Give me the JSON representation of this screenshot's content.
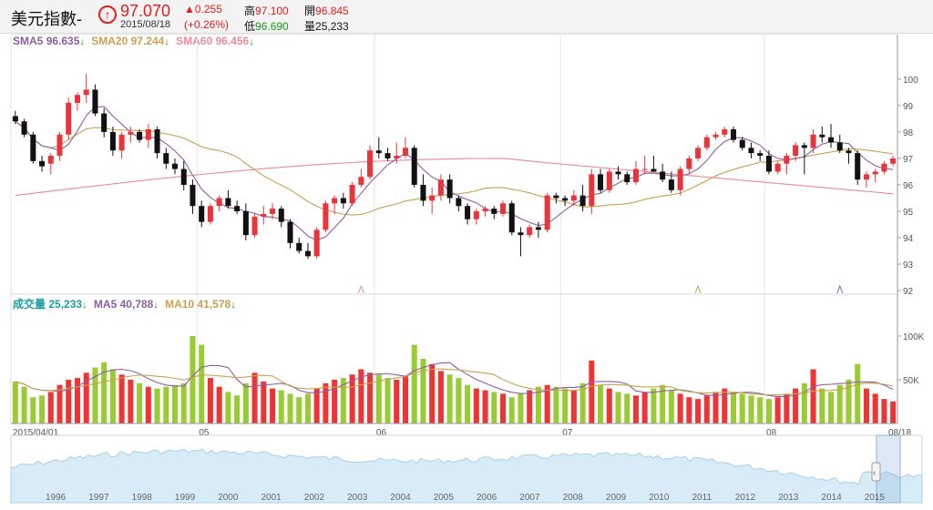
{
  "header": {
    "title": "美元指數-",
    "price": "97.070",
    "date": "2015/08/18",
    "change": "▲0.255",
    "change_pct": "(+0.26%)",
    "high_label": "高",
    "high": "97.100",
    "open_label": "開",
    "open": "96.845",
    "low_label": "低",
    "low": "96.690",
    "volume_label": "量",
    "volume": "25,233"
  },
  "price_legend": [
    {
      "label": "SMA5",
      "value": "96.635",
      "color": "#8e5ea2"
    },
    {
      "label": "SMA20",
      "value": "97.244",
      "color": "#c8a050"
    },
    {
      "label": "SMA60",
      "value": "96.456",
      "color": "#e98a9a"
    }
  ],
  "volume_legend": [
    {
      "label": "成交量",
      "value": "25,233",
      "color": "#1aa0a0"
    },
    {
      "label": "MA5",
      "value": "40,788",
      "color": "#8e5ea2"
    },
    {
      "label": "MA10",
      "value": "41,578",
      "color": "#c8a050"
    }
  ],
  "arrow_glyph": "↓",
  "chart_data": {
    "type": "candlestick",
    "price_axis": {
      "ticks": [
        92,
        93,
        94,
        95,
        96,
        97,
        98,
        99,
        100
      ],
      "ylim": [
        91.9,
        101.2
      ]
    },
    "volume_axis": {
      "ticks": [
        "50K",
        "100K"
      ],
      "ylim": [
        0,
        125000
      ]
    },
    "x_labels": [
      {
        "label": "2015/04/01",
        "index": 0
      },
      {
        "label": "05",
        "index": 21
      },
      {
        "label": "06",
        "index": 41
      },
      {
        "label": "07",
        "index": 62
      },
      {
        "label": "08",
        "index": 85
      },
      {
        "label": "08/18",
        "index": 97
      }
    ],
    "ohlc": [
      [
        98.6,
        98.8,
        98.3,
        98.4
      ],
      [
        98.4,
        98.5,
        97.8,
        97.9
      ],
      [
        97.9,
        98.0,
        96.8,
        96.9
      ],
      [
        96.9,
        97.1,
        96.5,
        96.7
      ],
      [
        96.8,
        97.2,
        96.4,
        97.1
      ],
      [
        97.1,
        98.0,
        96.9,
        97.9
      ],
      [
        97.9,
        99.3,
        97.7,
        99.1
      ],
      [
        99.1,
        99.5,
        98.8,
        99.4
      ],
      [
        99.4,
        100.2,
        99.1,
        99.6
      ],
      [
        99.6,
        99.8,
        98.6,
        98.7
      ],
      [
        98.7,
        98.9,
        97.8,
        98.0
      ],
      [
        98.0,
        98.2,
        97.1,
        97.3
      ],
      [
        97.3,
        98.0,
        97.0,
        97.9
      ],
      [
        97.9,
        98.2,
        97.6,
        98.0
      ],
      [
        98.0,
        98.1,
        97.6,
        97.7
      ],
      [
        97.7,
        98.3,
        97.4,
        98.1
      ],
      [
        98.1,
        98.2,
        97.0,
        97.2
      ],
      [
        97.2,
        97.4,
        96.6,
        96.8
      ],
      [
        96.8,
        97.0,
        96.4,
        96.6
      ],
      [
        96.6,
        96.9,
        95.8,
        96.0
      ],
      [
        96.0,
        96.2,
        94.9,
        95.2
      ],
      [
        95.2,
        95.4,
        94.4,
        94.6
      ],
      [
        94.6,
        95.3,
        94.5,
        95.2
      ],
      [
        95.2,
        95.6,
        95.0,
        95.5
      ],
      [
        95.5,
        95.8,
        95.1,
        95.2
      ],
      [
        95.2,
        95.4,
        94.9,
        95.0
      ],
      [
        95.0,
        95.3,
        93.9,
        94.1
      ],
      [
        94.1,
        94.9,
        94.0,
        94.8
      ],
      [
        94.8,
        95.2,
        94.5,
        94.9
      ],
      [
        94.9,
        95.3,
        94.7,
        95.1
      ],
      [
        95.1,
        95.2,
        94.4,
        94.6
      ],
      [
        94.6,
        94.7,
        93.6,
        93.8
      ],
      [
        93.8,
        94.0,
        93.4,
        93.5
      ],
      [
        93.5,
        93.8,
        93.2,
        93.3
      ],
      [
        93.3,
        94.4,
        93.2,
        94.3
      ],
      [
        94.3,
        95.4,
        94.2,
        95.3
      ],
      [
        95.3,
        95.6,
        94.9,
        95.5
      ],
      [
        95.5,
        95.7,
        95.1,
        95.3
      ],
      [
        95.3,
        96.1,
        95.2,
        96.0
      ],
      [
        96.0,
        96.6,
        95.9,
        96.3
      ],
      [
        96.3,
        97.5,
        96.2,
        97.3
      ],
      [
        97.3,
        97.8,
        97.0,
        97.2
      ],
      [
        97.2,
        97.4,
        96.9,
        97.0
      ],
      [
        97.0,
        97.6,
        96.8,
        97.1
      ],
      [
        97.1,
        97.8,
        97.0,
        97.4
      ],
      [
        97.4,
        97.5,
        95.9,
        96.0
      ],
      [
        96.0,
        96.4,
        95.2,
        95.4
      ],
      [
        95.4,
        95.9,
        94.9,
        95.6
      ],
      [
        95.6,
        96.4,
        95.4,
        96.2
      ],
      [
        96.2,
        96.4,
        95.3,
        95.5
      ],
      [
        95.5,
        95.6,
        95.0,
        95.2
      ],
      [
        95.2,
        95.3,
        94.5,
        94.7
      ],
      [
        94.7,
        95.1,
        94.5,
        95.0
      ],
      [
        95.0,
        95.2,
        94.8,
        95.1
      ],
      [
        95.1,
        95.2,
        94.7,
        94.9
      ],
      [
        94.9,
        95.4,
        94.8,
        95.3
      ],
      [
        95.3,
        95.4,
        94.1,
        94.2
      ],
      [
        94.2,
        94.4,
        93.3,
        94.1
      ],
      [
        94.1,
        94.5,
        94.0,
        94.4
      ],
      [
        94.4,
        94.6,
        94.0,
        94.3
      ],
      [
        94.3,
        95.7,
        94.2,
        95.6
      ],
      [
        95.6,
        95.7,
        95.3,
        95.5
      ],
      [
        95.5,
        95.6,
        95.2,
        95.4
      ],
      [
        95.4,
        95.8,
        95.2,
        95.6
      ],
      [
        95.6,
        96.0,
        95.0,
        95.2
      ],
      [
        95.2,
        96.6,
        94.9,
        96.4
      ],
      [
        96.4,
        96.6,
        95.7,
        95.8
      ],
      [
        95.8,
        96.6,
        95.7,
        96.5
      ],
      [
        96.5,
        96.7,
        96.2,
        96.4
      ],
      [
        96.4,
        96.5,
        96.0,
        96.1
      ],
      [
        96.1,
        96.9,
        96.0,
        96.6
      ],
      [
        96.6,
        97.1,
        96.4,
        96.6
      ],
      [
        96.6,
        97.1,
        96.5,
        96.5
      ],
      [
        96.5,
        96.8,
        96.1,
        96.2
      ],
      [
        96.2,
        96.5,
        95.7,
        95.8
      ],
      [
        95.8,
        96.7,
        95.6,
        96.6
      ],
      [
        96.6,
        97.1,
        96.4,
        97.0
      ],
      [
        97.0,
        97.5,
        96.9,
        97.4
      ],
      [
        97.4,
        97.9,
        97.3,
        97.8
      ],
      [
        97.8,
        98.0,
        97.7,
        97.9
      ],
      [
        97.9,
        98.2,
        97.8,
        98.1
      ],
      [
        98.1,
        98.2,
        97.6,
        97.7
      ],
      [
        97.7,
        97.8,
        97.3,
        97.4
      ],
      [
        97.4,
        97.6,
        97.0,
        97.2
      ],
      [
        97.2,
        97.3,
        96.9,
        97.1
      ],
      [
        97.1,
        97.3,
        96.4,
        96.5
      ],
      [
        96.5,
        96.9,
        96.4,
        96.8
      ],
      [
        96.8,
        97.2,
        96.4,
        97.1
      ],
      [
        97.1,
        97.6,
        96.9,
        97.5
      ],
      [
        97.5,
        97.6,
        96.4,
        97.4
      ],
      [
        97.4,
        98.1,
        97.2,
        97.9
      ],
      [
        97.9,
        98.2,
        97.6,
        97.8
      ],
      [
        97.8,
        98.3,
        97.4,
        97.6
      ],
      [
        97.6,
        97.9,
        97.2,
        97.3
      ],
      [
        97.3,
        97.4,
        96.8,
        97.2
      ],
      [
        97.2,
        97.3,
        96.0,
        96.2
      ],
      [
        96.2,
        96.5,
        95.9,
        96.4
      ],
      [
        96.4,
        96.6,
        96.1,
        96.5
      ],
      [
        96.5,
        96.9,
        96.4,
        96.8
      ],
      [
        96.8,
        97.1,
        96.7,
        97.0
      ]
    ],
    "volume": [
      48000,
      42000,
      30000,
      32000,
      36000,
      44000,
      50000,
      52000,
      58000,
      64000,
      70000,
      62000,
      56000,
      50000,
      46000,
      42000,
      40000,
      42000,
      44000,
      46000,
      100000,
      90000,
      52000,
      42000,
      36000,
      32000,
      46000,
      58000,
      48000,
      40000,
      38000,
      34000,
      30000,
      34000,
      40000,
      46000,
      50000,
      52000,
      56000,
      62000,
      58000,
      56000,
      52000,
      50000,
      54000,
      90000,
      74000,
      68000,
      60000,
      56000,
      52000,
      44000,
      40000,
      38000,
      36000,
      34000,
      30000,
      34000,
      38000,
      42000,
      44000,
      42000,
      40000,
      38000,
      46000,
      72000,
      44000,
      40000,
      36000,
      34000,
      32000,
      36000,
      40000,
      44000,
      38000,
      34000,
      30000,
      28000,
      32000,
      36000,
      40000,
      36000,
      34000,
      32000,
      30000,
      28000,
      30000,
      34000,
      40000,
      46000,
      62000,
      40000,
      36000,
      44000,
      50000,
      68000,
      40000,
      34000,
      28000,
      25233
    ]
  },
  "navigator": {
    "years": [
      "1996",
      "1997",
      "1998",
      "1999",
      "2000",
      "2001",
      "2002",
      "2003",
      "2004",
      "2005",
      "2006",
      "2007",
      "2008",
      "2009",
      "2010",
      "2011",
      "2012",
      "2013",
      "2014",
      "2015"
    ]
  }
}
